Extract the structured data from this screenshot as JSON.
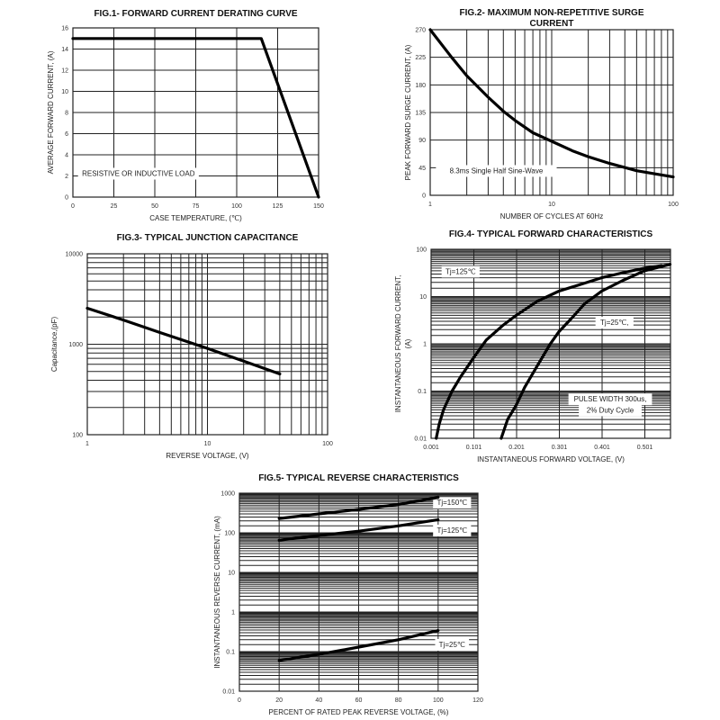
{
  "chart_data": [
    {
      "id": "fig1",
      "type": "line",
      "title": "FIG.1- FORWARD CURRENT DERATING CURVE",
      "xlabel": "CASE TEMPERATURE, (℃)",
      "ylabel": "AVERAGE FORWARD CURRENT, (A)",
      "xscale": "linear",
      "yscale": "linear",
      "xlim": [
        0,
        150
      ],
      "ylim": [
        0,
        16
      ],
      "xticks": [
        0,
        25,
        50,
        75,
        100,
        125,
        150
      ],
      "yticks": [
        0,
        2,
        4,
        6,
        8,
        10,
        12,
        14,
        16
      ],
      "grid": true,
      "annotations": [
        {
          "text": "RESISTIVE OR INDUCTIVE LOAD",
          "x": 40,
          "y": 2
        }
      ],
      "series": [
        {
          "name": "derating",
          "x": [
            0,
            115,
            150
          ],
          "y": [
            15,
            15,
            0
          ]
        }
      ]
    },
    {
      "id": "fig2",
      "type": "line",
      "title": "FIG.2- MAXIMUM NON-REPETITIVE SURGE CURRENT",
      "xlabel": "NUMBER OF CYCLES AT 60Hz",
      "ylabel": "PEAK FORWARD SURGE CURRENT, (A)",
      "xscale": "log",
      "yscale": "linear",
      "xlim": [
        1,
        100
      ],
      "ylim": [
        0,
        270
      ],
      "xticks": [
        1,
        10,
        100
      ],
      "yticks": [
        0,
        45,
        90,
        135,
        180,
        225,
        270
      ],
      "grid": true,
      "annotations": [
        {
          "text": "8.3ms Single Half Sine-Wave",
          "x": 3.5,
          "y": 36
        }
      ],
      "series": [
        {
          "name": "surge",
          "x": [
            1,
            1.5,
            2,
            3,
            4,
            5,
            7,
            10,
            15,
            20,
            30,
            50,
            70,
            100
          ],
          "y": [
            270,
            225,
            195,
            160,
            137,
            122,
            102,
            88,
            72,
            63,
            52,
            40,
            35,
            30
          ]
        }
      ]
    },
    {
      "id": "fig3",
      "type": "line",
      "title": "FIG.3- TYPICAL JUNCTION CAPACITANCE",
      "xlabel": "REVERSE VOLTAGE, (V)",
      "ylabel": "Capacitance,(pF)",
      "xscale": "log",
      "yscale": "log",
      "xlim": [
        1,
        100
      ],
      "ylim": [
        100,
        10000
      ],
      "xticks": [
        1,
        10,
        100
      ],
      "yticks": [
        100,
        1000,
        10000
      ],
      "grid": true,
      "series": [
        {
          "name": "capacitance",
          "x": [
            1,
            2,
            4,
            10,
            20,
            40
          ],
          "y": [
            2500,
            1850,
            1350,
            900,
            650,
            470
          ]
        }
      ]
    },
    {
      "id": "fig4",
      "type": "line",
      "title": "FIG.4- TYPICAL FORWARD CHARACTERISTICS",
      "xlabel": "INSTANTANEOUS FORWARD VOLTAGE, (V)",
      "ylabel": "INSTANTANEOUS FORWARD CURRENT, (A)",
      "xscale": "linear",
      "yscale": "log",
      "xlim": [
        0.001,
        0.561
      ],
      "ylim": [
        0.01,
        100
      ],
      "xticks": [
        0.001,
        0.101,
        0.201,
        0.301,
        0.401,
        0.501
      ],
      "xtick_labels": [
        "0.001",
        "0.101",
        "0.201",
        "0.301",
        "0.401",
        "0.501"
      ],
      "yticks": [
        0.01,
        0.1,
        1,
        10,
        100
      ],
      "ytick_labels": [
        "0.01",
        "0.1",
        "1",
        "10",
        "100"
      ],
      "grid": true,
      "annotations": [
        {
          "text": "Tj=125℃",
          "x": 0.07,
          "y": 30
        },
        {
          "text": "Tj=25℃,",
          "x": 0.43,
          "y": 2.5
        },
        {
          "text": "PULSE WIDTH 300us,",
          "x": 0.42,
          "y": 0.06
        },
        {
          "text": "2% Duty Cycle",
          "x": 0.42,
          "y": 0.035
        }
      ],
      "series": [
        {
          "name": "Tj=125℃",
          "x": [
            0.013,
            0.02,
            0.03,
            0.05,
            0.07,
            0.1,
            0.13,
            0.17,
            0.2,
            0.25,
            0.3,
            0.35,
            0.4,
            0.45,
            0.5,
            0.54
          ],
          "y": [
            0.01,
            0.02,
            0.04,
            0.1,
            0.2,
            0.5,
            1.2,
            2.5,
            4,
            8,
            13,
            18,
            25,
            32,
            40,
            45
          ]
        },
        {
          "name": "Tj=25℃",
          "x": [
            0.165,
            0.18,
            0.2,
            0.22,
            0.25,
            0.28,
            0.3,
            0.33,
            0.36,
            0.4,
            0.45,
            0.5,
            0.56
          ],
          "y": [
            0.01,
            0.025,
            0.05,
            0.12,
            0.35,
            1,
            1.8,
            3.5,
            7,
            13,
            22,
            35,
            48
          ]
        }
      ]
    },
    {
      "id": "fig5",
      "type": "line",
      "title": "FIG.5- TYPICAL REVERSE CHARACTERISTICS",
      "xlabel": "PERCENT OF RATED PEAK REVERSE VOLTAGE, (%)",
      "ylabel": "INSTANTANEOUS REVERSE CURRENT, (mA)",
      "xscale": "linear",
      "yscale": "log",
      "xlim": [
        0,
        120
      ],
      "ylim": [
        0.01,
        1000
      ],
      "xticks": [
        0,
        20,
        40,
        60,
        80,
        100,
        120
      ],
      "yticks": [
        0.01,
        0.1,
        1,
        10,
        100,
        1000
      ],
      "ytick_labels": [
        "0.01",
        "0.1",
        "1",
        "10",
        "100",
        "1000"
      ],
      "grid": true,
      "annotations": [
        {
          "text": "Tj=150℃",
          "x": 107,
          "y": 500
        },
        {
          "text": "Tj=125℃",
          "x": 107,
          "y": 100
        },
        {
          "text": "Tj=25℃",
          "x": 107,
          "y": 0.13
        }
      ],
      "series": [
        {
          "name": "Tj=150℃",
          "x": [
            20,
            40,
            60,
            80,
            100
          ],
          "y": [
            230,
            300,
            390,
            520,
            780
          ]
        },
        {
          "name": "Tj=125℃",
          "x": [
            20,
            40,
            60,
            80,
            100
          ],
          "y": [
            65,
            85,
            110,
            150,
            215
          ]
        },
        {
          "name": "Tj=25℃",
          "x": [
            20,
            40,
            60,
            80,
            100
          ],
          "y": [
            0.06,
            0.085,
            0.13,
            0.2,
            0.34
          ]
        }
      ]
    }
  ]
}
